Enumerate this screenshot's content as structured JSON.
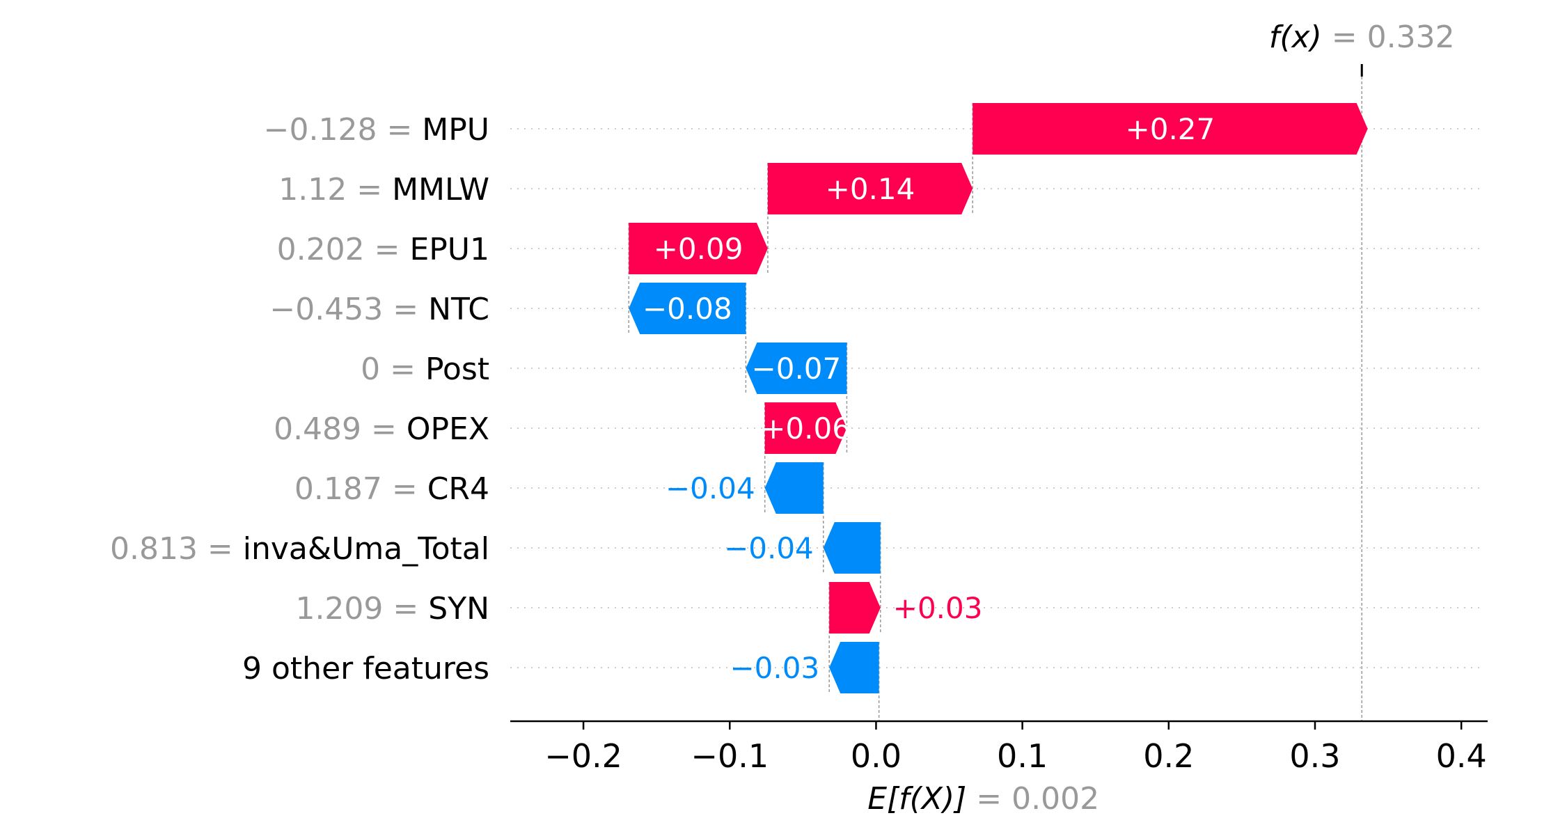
{
  "chart_data": {
    "type": "bar",
    "fx": {
      "label": "f(x)",
      "equals": "=",
      "value_text": "0.332",
      "value": 0.332
    },
    "base": {
      "label": "E[f(X)]",
      "equals": "=",
      "value_text": "0.002",
      "value": 0.002
    },
    "features": [
      {
        "value_text": "−0.128",
        "name": "MPU",
        "contribution": 0.27,
        "label": "+0.27"
      },
      {
        "value_text": "1.12",
        "name": "MMLW",
        "contribution": 0.14,
        "label": "+0.14"
      },
      {
        "value_text": "0.202",
        "name": "EPU1",
        "contribution": 0.095,
        "label": "+0.09"
      },
      {
        "value_text": "−0.453",
        "name": "NTC",
        "contribution": -0.08,
        "label": "−0.08"
      },
      {
        "value_text": "0",
        "name": "Post",
        "contribution": -0.069,
        "label": "−0.07"
      },
      {
        "value_text": "0.489",
        "name": "OPEX",
        "contribution": 0.056,
        "label": "+0.06"
      },
      {
        "value_text": "0.187",
        "name": "CR4",
        "contribution": -0.04,
        "label": "−0.04"
      },
      {
        "value_text": "0.813",
        "name": "inva&Uma_Total",
        "contribution": -0.039,
        "label": "−0.04"
      },
      {
        "value_text": "1.209",
        "name": "SYN",
        "contribution": 0.035,
        "label": "+0.03"
      },
      {
        "value_text": "",
        "name": "9 other features",
        "contribution": -0.034,
        "label": "−0.03"
      }
    ],
    "xlim": [
      -0.25,
      0.418
    ],
    "xticks": [
      -0.2,
      -0.1,
      0.0,
      0.1,
      0.2,
      0.3,
      0.4
    ],
    "xtick_labels": [
      "−0.2",
      "−0.1",
      "0.0",
      "0.1",
      "0.2",
      "0.3",
      "0.4"
    ],
    "colors": {
      "positive": "#ff0051",
      "negative": "#008bfb",
      "grid": "#cccccc",
      "axis": "#000000",
      "muted": "#999999"
    }
  }
}
